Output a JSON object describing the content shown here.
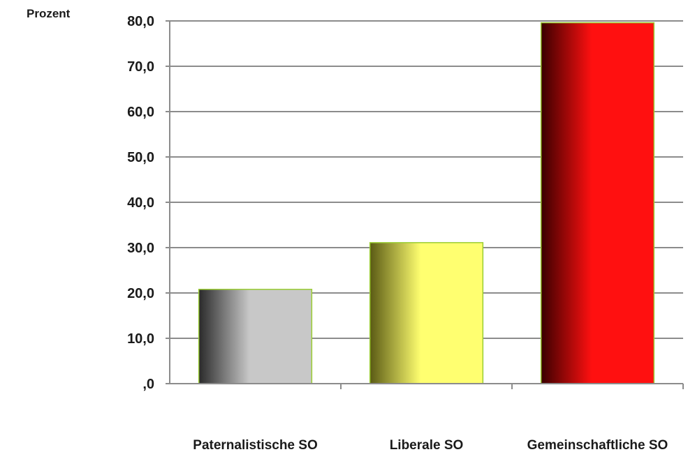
{
  "chart_data": {
    "type": "bar",
    "ylabel": "Prozent",
    "categories": [
      "Paternalistische SO",
      "Liberale SO",
      "Gemeinschaftliche SO"
    ],
    "values": [
      20.8,
      31.1,
      79.6
    ],
    "ylim": [
      0,
      80
    ],
    "yticks": [
      0,
      10,
      20,
      30,
      40,
      50,
      60,
      70,
      80
    ],
    "ytick_labels": [
      ",0",
      "10,0",
      "20,0",
      "30,0",
      "40,0",
      "50,0",
      "60,0",
      "70,0",
      "80,0"
    ],
    "grid": true,
    "bar_colors": [
      {
        "dark": "#2a2a2a",
        "light": "#c8c8c8"
      },
      {
        "dark": "#5a5a14",
        "light": "#ffff70"
      },
      {
        "dark": "#3a0000",
        "light": "#ff1010"
      }
    ],
    "bar_border": "#9acd32",
    "gridline_color": "#8c8c8c"
  }
}
